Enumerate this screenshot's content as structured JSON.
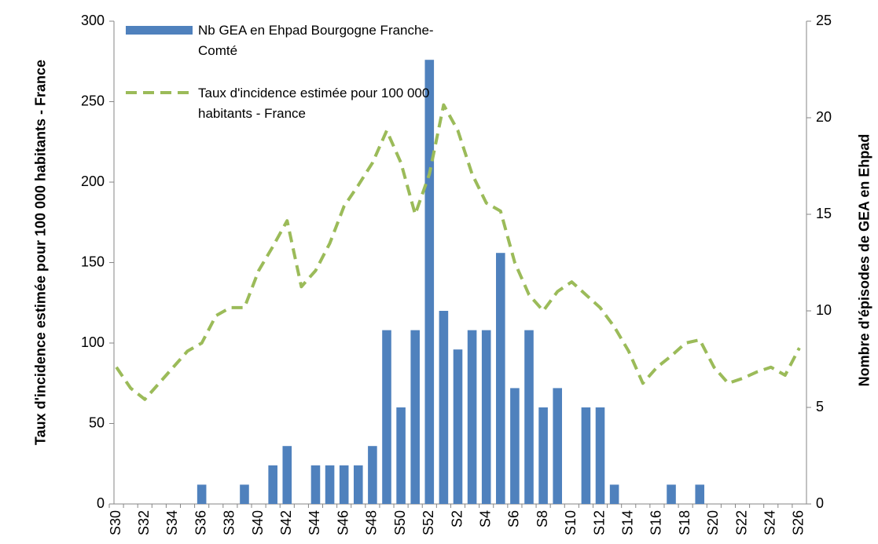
{
  "chart_data": {
    "type": "bar",
    "y_label": "Taux d'incidence estimée pour 100 000 habitants - France",
    "y2_label": "Nombre d'épisodes de GEA en Ehpad",
    "categories": [
      "S30",
      null,
      "S32",
      null,
      "S34",
      null,
      "S36",
      null,
      "S38",
      null,
      "S40",
      null,
      "S42",
      null,
      "S44",
      null,
      "S46",
      null,
      "S48",
      null,
      "S50",
      null,
      "S52",
      null,
      "S2",
      null,
      "S4",
      null,
      "S6",
      null,
      "S8",
      null,
      "S10",
      null,
      "S12",
      null,
      "S14",
      null,
      "S16",
      null,
      "S18",
      null,
      "S20",
      null,
      "S22",
      null,
      "S24",
      null,
      "S26"
    ],
    "series": [
      {
        "name": "Nb GEA en Ehpad Bourgogne Franche-Comté",
        "type": "bar",
        "axis": "y2",
        "color": "#4f81bd",
        "values": [
          0,
          0,
          0,
          0,
          0,
          0,
          1,
          0,
          0,
          1,
          0,
          2,
          3,
          0,
          2,
          2,
          2,
          2,
          3,
          9,
          5,
          9,
          23,
          10,
          8,
          9,
          9,
          13,
          6,
          9,
          5,
          6,
          0,
          5,
          5,
          1,
          0,
          0,
          0,
          1,
          0,
          1,
          0,
          0,
          0,
          0,
          0,
          0,
          0
        ]
      },
      {
        "name": "Taux d'incidence estimée pour 100 000 habitants - France",
        "type": "line",
        "color": "#9bbb59",
        "values": [
          85,
          72,
          65,
          75,
          85,
          95,
          100,
          117,
          122,
          122,
          145,
          160,
          176,
          135,
          145,
          162,
          185,
          198,
          212,
          232,
          212,
          180,
          205,
          248,
          232,
          205,
          187,
          182,
          150,
          130,
          120,
          132,
          138,
          130,
          122,
          110,
          95,
          75,
          85,
          92,
          100,
          102,
          85,
          75,
          78,
          82,
          85,
          80,
          97
        ]
      }
    ],
    "ylim": [
      0,
      300
    ],
    "yticks": [
      0,
      50,
      100,
      150,
      200,
      250,
      300
    ],
    "y2lim": [
      0,
      25
    ],
    "y2ticks": [
      0,
      5,
      10,
      15,
      20,
      25
    ]
  }
}
